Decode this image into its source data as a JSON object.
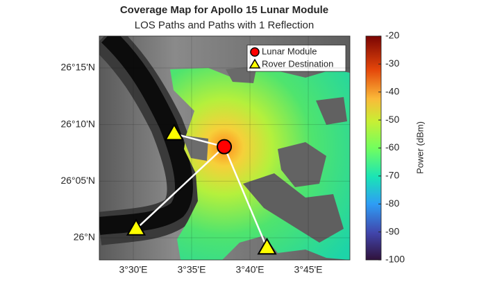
{
  "chart_data": {
    "type": "map",
    "title": "Coverage Map for Apollo 15 Lunar Module",
    "subtitle": "LOS Paths and Paths with 1 Reflection",
    "xlim": [
      3.4514,
      3.8095
    ],
    "ylim": [
      25.9674,
      26.2969
    ],
    "xticks": [
      {
        "value": 3.5,
        "label": "3°30'E"
      },
      {
        "value": 3.5833,
        "label": "3°35'E"
      },
      {
        "value": 3.6667,
        "label": "3°40'E"
      },
      {
        "value": 3.75,
        "label": "3°45'E"
      }
    ],
    "yticks": [
      {
        "value": 26.0,
        "label": "26°N"
      },
      {
        "value": 26.0833,
        "label": "26°05'N"
      },
      {
        "value": 26.1667,
        "label": "26°10'N"
      },
      {
        "value": 26.25,
        "label": "26°15'N"
      }
    ],
    "legend": "upper right",
    "series": [
      {
        "name": "Lunar Module",
        "color": "#ff0000",
        "marker": "circle",
        "x": [
          3.63
        ],
        "y": [
          26.134
        ]
      },
      {
        "name": "Rover Destination",
        "color": "#ffff00",
        "marker": "triangle",
        "x": [
          3.5585,
          3.504,
          3.691
        ],
        "y": [
          26.153,
          26.013,
          25.985
        ]
      }
    ],
    "colorbar": {
      "label": "Power (dBm)",
      "lim": [
        -100,
        -20
      ],
      "ticks": [
        -20,
        -30,
        -40,
        -50,
        -60,
        -70,
        -80,
        -90,
        -100
      ]
    }
  }
}
